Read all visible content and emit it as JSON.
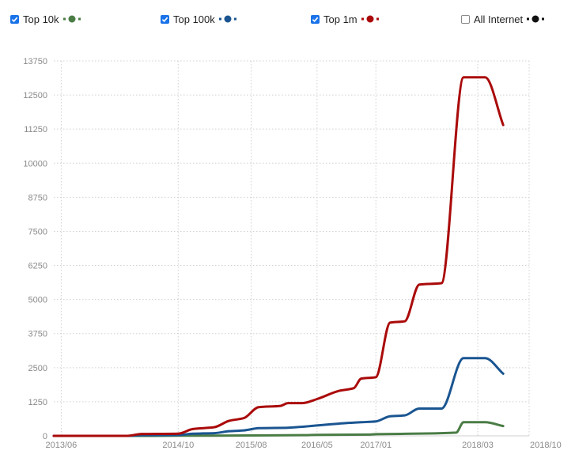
{
  "legend": [
    {
      "label": "Top 10k",
      "checked": true,
      "color": "#4a7c45",
      "swatch_icon": "dot-swatch-icon"
    },
    {
      "label": "Top 100k",
      "checked": true,
      "color": "#1a5591",
      "swatch_icon": "dot-swatch-icon"
    },
    {
      "label": "Top 1m",
      "checked": true,
      "color": "#aa0a0a",
      "swatch_icon": "dot-swatch-icon"
    },
    {
      "label": "All Internet",
      "checked": false,
      "color": "#111111",
      "swatch_icon": "dot-swatch-icon"
    }
  ],
  "chart_data": {
    "type": "line",
    "title": "",
    "xlabel": "",
    "ylabel": "",
    "ylim": [
      0,
      13750
    ],
    "yticks": [
      "0",
      "1250",
      "2500",
      "3750",
      "5000",
      "6250",
      "7500",
      "8750",
      "10000",
      "11250",
      "12500",
      "13750"
    ],
    "xlim": [
      "2013-05",
      "2018-10"
    ],
    "xticks": [
      "2013/06",
      "2014/10",
      "2015/08",
      "2016/05",
      "2017/01",
      "2018/03",
      "2018/10"
    ],
    "grid": true,
    "legend_position": "top",
    "series": [
      {
        "name": "Top 10k",
        "color": "#4a7c45",
        "points": [
          [
            "2013-05-01",
            0
          ],
          [
            "2014-03-01",
            0
          ],
          [
            "2014-10-01",
            5
          ],
          [
            "2015-03-01",
            10
          ],
          [
            "2015-08-01",
            15
          ],
          [
            "2016-03-01",
            25
          ],
          [
            "2016-05-01",
            35
          ],
          [
            "2016-12-01",
            45
          ],
          [
            "2017-01-01",
            60
          ],
          [
            "2017-09-01",
            90
          ],
          [
            "2017-12-01",
            120
          ],
          [
            "2018-01-01",
            500
          ],
          [
            "2018-04-01",
            500
          ],
          [
            "2018-06-15",
            360
          ]
        ]
      },
      {
        "name": "Top 100k",
        "color": "#1a5591",
        "points": [
          [
            "2013-05-01",
            0
          ],
          [
            "2014-03-01",
            0
          ],
          [
            "2014-05-01",
            20
          ],
          [
            "2014-10-01",
            30
          ],
          [
            "2014-12-01",
            80
          ],
          [
            "2015-03-01",
            100
          ],
          [
            "2015-05-01",
            170
          ],
          [
            "2015-07-01",
            200
          ],
          [
            "2015-09-01",
            280
          ],
          [
            "2016-01-01",
            300
          ],
          [
            "2016-05-01",
            380
          ],
          [
            "2016-08-01",
            450
          ],
          [
            "2016-11-01",
            500
          ],
          [
            "2017-01-01",
            530
          ],
          [
            "2017-03-01",
            720
          ],
          [
            "2017-05-01",
            750
          ],
          [
            "2017-07-01",
            1000
          ],
          [
            "2017-10-01",
            1000
          ],
          [
            "2018-01-01",
            2850
          ],
          [
            "2018-04-01",
            2850
          ],
          [
            "2018-06-15",
            2280
          ]
        ]
      },
      {
        "name": "Top 1m",
        "color": "#aa0a0a",
        "points": [
          [
            "2013-05-01",
            0
          ],
          [
            "2014-03-01",
            0
          ],
          [
            "2014-05-01",
            70
          ],
          [
            "2014-10-01",
            80
          ],
          [
            "2014-12-01",
            250
          ],
          [
            "2015-03-01",
            320
          ],
          [
            "2015-05-01",
            550
          ],
          [
            "2015-07-01",
            650
          ],
          [
            "2015-09-01",
            1050
          ],
          [
            "2015-12-01",
            1100
          ],
          [
            "2016-01-01",
            1200
          ],
          [
            "2016-03-01",
            1200
          ],
          [
            "2016-05-01",
            1350
          ],
          [
            "2016-08-01",
            1650
          ],
          [
            "2016-10-01",
            1750
          ],
          [
            "2016-11-01",
            2100
          ],
          [
            "2017-01-01",
            2150
          ],
          [
            "2017-03-01",
            4150
          ],
          [
            "2017-05-01",
            4200
          ],
          [
            "2017-07-01",
            5550
          ],
          [
            "2017-10-01",
            5600
          ],
          [
            "2018-01-01",
            13150
          ],
          [
            "2018-04-01",
            13150
          ],
          [
            "2018-06-15",
            11400
          ]
        ]
      }
    ]
  }
}
